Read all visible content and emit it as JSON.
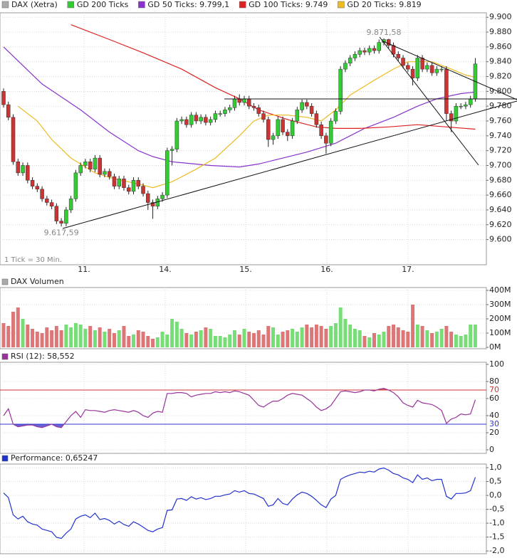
{
  "chart_data": [
    {
      "type": "candlestick",
      "name": "DAX (Xetra)",
      "name_color": "#aaaaaa",
      "footnote": "1 Tick = 30 Min.",
      "up_color": "#33cc33",
      "down_color": "#cc3333",
      "xlim": [
        -0.74,
        100.3
      ],
      "xticks": [
        {
          "value": 16.72,
          "label": "11."
        },
        {
          "value": 33.58,
          "label": "14."
        },
        {
          "value": 50.3,
          "label": "15."
        },
        {
          "value": 67.16,
          "label": "16."
        },
        {
          "value": 84.02,
          "label": "17."
        }
      ],
      "ylim": [
        9566,
        9906
      ],
      "yticks": [
        {
          "value": 9600,
          "label": "9.600"
        },
        {
          "value": 9620,
          "label": "9.620"
        },
        {
          "value": 9640,
          "label": "9.640"
        },
        {
          "value": 9660,
          "label": "9.660"
        },
        {
          "value": 9680,
          "label": "9.680"
        },
        {
          "value": 9700,
          "label": "9.700"
        },
        {
          "value": 9720,
          "label": "9.720"
        },
        {
          "value": 9740,
          "label": "9.740"
        },
        {
          "value": 9760,
          "label": "9.760"
        },
        {
          "value": 9780,
          "label": "9.780"
        },
        {
          "value": 9800,
          "label": "9.800"
        },
        {
          "value": 9820,
          "label": "9.820"
        },
        {
          "value": 9840,
          "label": "9.840"
        },
        {
          "value": 9860,
          "label": "9.860"
        },
        {
          "value": 9880,
          "label": "9.880"
        },
        {
          "value": 9900,
          "label": "9.900"
        }
      ],
      "grid": true,
      "open": [
        9800,
        9782,
        9765,
        9705,
        9690,
        9700,
        9680,
        9672,
        9668,
        9655,
        9650,
        9645,
        9625,
        9622,
        9640,
        9655,
        9690,
        9700,
        9705,
        9695,
        9710,
        9688,
        9692,
        9685,
        9672,
        9682,
        9670,
        9665,
        9680,
        9672,
        9662,
        9650,
        9645,
        9655,
        9660,
        9720,
        9722,
        9760,
        9762,
        9755,
        9768,
        9760,
        9765,
        9758,
        9762,
        9770,
        9770,
        9775,
        9778,
        9790,
        9785,
        9790,
        9780,
        9778,
        9770,
        9762,
        9735,
        9740,
        9762,
        9745,
        9740,
        9760,
        9775,
        9785,
        9780,
        9770,
        9755,
        9740,
        9730,
        9760,
        9773,
        9830,
        9838,
        9845,
        9850,
        9855,
        9853,
        9858,
        9855,
        9866,
        9870,
        9862,
        9850,
        9845,
        9835,
        9830,
        9818,
        9845,
        9830,
        9835,
        9825,
        9830,
        9830,
        9770,
        9760,
        9780,
        9780,
        9782,
        9790
      ],
      "high": [
        9804,
        9786,
        9769,
        9709,
        9704,
        9704,
        9684,
        9676,
        9672,
        9659,
        9654,
        9649,
        9629,
        9644,
        9659,
        9694,
        9704,
        9709,
        9709,
        9714,
        9714,
        9696,
        9696,
        9689,
        9686,
        9686,
        9674,
        9684,
        9684,
        9676,
        9666,
        9654,
        9659,
        9664,
        9724,
        9726,
        9764,
        9766,
        9766,
        9772,
        9772,
        9769,
        9769,
        9766,
        9774,
        9774,
        9779,
        9782,
        9794,
        9796,
        9794,
        9794,
        9784,
        9782,
        9774,
        9766,
        9744,
        9766,
        9766,
        9749,
        9764,
        9779,
        9789,
        9789,
        9784,
        9774,
        9759,
        9744,
        9764,
        9777,
        9834,
        9842,
        9849,
        9854,
        9859,
        9859,
        9862,
        9862,
        9870,
        9871.58,
        9871,
        9866,
        9854,
        9849,
        9839,
        9834,
        9849,
        9849,
        9839,
        9839,
        9834,
        9834,
        9834,
        9774,
        9784,
        9784,
        9786,
        9794,
        9845
      ],
      "low": [
        9778,
        9761,
        9701,
        9686,
        9686,
        9676,
        9668,
        9664,
        9651,
        9646,
        9641,
        9621,
        9617.59,
        9618,
        9636,
        9651,
        9686,
        9696,
        9691,
        9691,
        9684,
        9684,
        9681,
        9668,
        9668,
        9666,
        9661,
        9661,
        9668,
        9658,
        9640,
        9628,
        9641,
        9651,
        9656,
        9700,
        9718,
        9756,
        9751,
        9751,
        9756,
        9756,
        9754,
        9754,
        9758,
        9766,
        9766,
        9771,
        9774,
        9781,
        9781,
        9776,
        9774,
        9766,
        9758,
        9725,
        9728,
        9736,
        9741,
        9733,
        9736,
        9756,
        9771,
        9776,
        9766,
        9751,
        9736,
        9716,
        9726,
        9756,
        9769,
        9826,
        9834,
        9841,
        9846,
        9849,
        9849,
        9851,
        9851,
        9862,
        9858,
        9846,
        9841,
        9831,
        9826,
        9808,
        9814,
        9826,
        9826,
        9821,
        9821,
        9826,
        9760,
        9745,
        9756,
        9776,
        9776,
        9778,
        9786
      ],
      "close": [
        9782,
        9765,
        9705,
        9690,
        9700,
        9680,
        9672,
        9668,
        9655,
        9650,
        9645,
        9625,
        9622,
        9640,
        9655,
        9690,
        9700,
        9705,
        9695,
        9710,
        9688,
        9692,
        9685,
        9672,
        9682,
        9670,
        9665,
        9680,
        9672,
        9662,
        9650,
        9645,
        9655,
        9660,
        9720,
        9722,
        9760,
        9762,
        9755,
        9768,
        9760,
        9765,
        9758,
        9762,
        9770,
        9770,
        9775,
        9778,
        9790,
        9785,
        9790,
        9780,
        9778,
        9770,
        9762,
        9735,
        9740,
        9762,
        9745,
        9740,
        9760,
        9775,
        9785,
        9780,
        9770,
        9755,
        9740,
        9730,
        9760,
        9773,
        9830,
        9838,
        9845,
        9850,
        9855,
        9853,
        9858,
        9855,
        9866,
        9870,
        9862,
        9850,
        9845,
        9835,
        9830,
        9818,
        9845,
        9830,
        9835,
        9825,
        9830,
        9830,
        9770,
        9760,
        9780,
        9780,
        9782,
        9790,
        9837
      ],
      "series": [
        {
          "name": "GD 200 Ticks",
          "color": "#33cc33"
        },
        {
          "name": "GD 50 Ticks: 9.799,1",
          "color": "#8833cc",
          "x": [
            0,
            8,
            16,
            22,
            28,
            31,
            35,
            43,
            49,
            53,
            58,
            63,
            69,
            75,
            81,
            86,
            90,
            95,
            98
          ],
          "values": [
            9860,
            9810,
            9775,
            9745,
            9720,
            9712,
            9705,
            9700,
            9698,
            9702,
            9710,
            9718,
            9730,
            9750,
            9765,
            9780,
            9790,
            9797,
            9799.1
          ]
        },
        {
          "name": "GD 100 Ticks: 9.749",
          "color": "#dd2222",
          "x": [
            14,
            22,
            29,
            37,
            44,
            49,
            53,
            59,
            65,
            69,
            74,
            80,
            86,
            92,
            98
          ],
          "values": [
            9890,
            9870,
            9852,
            9830,
            9805,
            9790,
            9775,
            9762,
            9752,
            9750,
            9750,
            9752,
            9755,
            9752,
            9749
          ]
        },
        {
          "name": "GD 20 Ticks: 9.819",
          "color": "#eebb22",
          "x": [
            3,
            7,
            10,
            14,
            19,
            23,
            28,
            31,
            35,
            40,
            44,
            49,
            52,
            55,
            59,
            63,
            66,
            69,
            72,
            77,
            81,
            84,
            89,
            93,
            96,
            98
          ],
          "values": [
            9780,
            9760,
            9735,
            9710,
            9690,
            9682,
            9675,
            9670,
            9678,
            9695,
            9710,
            9740,
            9760,
            9768,
            9768,
            9765,
            9760,
            9775,
            9795,
            9815,
            9830,
            9840,
            9840,
            9830,
            9822,
            9819
          ]
        }
      ],
      "annotations": [
        {
          "label": "9.871,58",
          "value": 9871.58
        },
        {
          "label": "9.617,59",
          "value": 9617.59
        }
      ]
    },
    {
      "type": "bar",
      "title": "DAX Volumen",
      "title_color": "#aaaaaa",
      "ylim": [
        -10,
        420
      ],
      "yticks": [
        {
          "value": 0,
          "label": "0M"
        },
        {
          "value": 100,
          "label": "100M"
        },
        {
          "value": 200,
          "label": "200M"
        },
        {
          "value": 300,
          "label": "300M"
        },
        {
          "value": 400,
          "label": "400M"
        }
      ],
      "values": [
        170,
        150,
        250,
        280,
        200,
        160,
        130,
        110,
        100,
        140,
        120,
        150,
        120,
        160,
        140,
        170,
        160,
        130,
        150,
        120,
        140,
        110,
        130,
        100,
        120,
        150,
        80,
        90,
        120,
        110,
        80,
        60,
        70,
        110,
        90,
        200,
        180,
        130,
        100,
        90,
        110,
        120,
        140,
        130,
        80,
        80,
        70,
        90,
        120,
        90,
        130,
        110,
        100,
        120,
        90,
        150,
        140,
        90,
        110,
        120,
        130,
        110,
        140,
        160,
        140,
        160,
        150,
        130,
        150,
        170,
        280,
        200,
        160,
        130,
        120,
        80,
        70,
        100,
        90,
        110,
        150,
        160,
        140,
        120,
        110,
        300,
        160,
        150,
        120,
        100,
        110,
        130,
        150,
        110,
        90,
        80,
        90,
        160,
        160
      ]
    },
    {
      "type": "line",
      "title": "RSI (12): 58,552",
      "title_color": "#993399",
      "color": "#993399",
      "ylim": [
        -4.2,
        102.5
      ],
      "yticks": [
        0,
        20,
        40,
        60,
        80,
        100
      ],
      "levels": [
        {
          "value": 30,
          "color": "#3333cc"
        },
        {
          "value": 70,
          "color": "#cc3333"
        }
      ],
      "values": [
        40,
        48,
        30,
        27,
        28,
        29,
        29,
        27,
        26,
        28,
        30,
        27,
        26,
        33,
        40,
        45,
        38,
        47,
        46,
        46,
        45,
        44,
        46,
        47,
        46,
        45,
        44,
        46,
        44,
        40,
        38,
        43,
        45,
        44,
        66,
        66,
        67,
        67,
        66,
        62,
        64,
        65,
        66,
        66,
        68,
        67,
        68,
        67,
        69,
        68,
        66,
        64,
        58,
        52,
        50,
        54,
        57,
        57,
        60,
        64,
        66,
        65,
        64,
        60,
        56,
        50,
        46,
        48,
        52,
        60,
        68,
        69,
        68,
        67,
        68,
        70,
        70,
        69,
        71,
        72,
        70,
        67,
        62,
        55,
        52,
        50,
        58,
        55,
        54,
        53,
        50,
        46,
        31,
        36,
        38,
        42,
        41,
        42,
        58.55
      ]
    },
    {
      "type": "line",
      "title": "Performance: 0,65247",
      "title_color": "#2233cc",
      "color": "#2233cc",
      "ylim": [
        -2.1,
        1.13
      ],
      "yticks": [
        {
          "value": -2,
          "label": "-2,0"
        },
        {
          "value": -1.5,
          "label": "-1,5"
        },
        {
          "value": -1,
          "label": "-1,0"
        },
        {
          "value": -0.5,
          "label": "-0,5"
        },
        {
          "value": 0,
          "label": "0,0"
        },
        {
          "value": 0.5,
          "label": "0,5"
        },
        {
          "value": 1,
          "label": "1,0"
        }
      ],
      "values": [
        0.09,
        -0.08,
        -0.7,
        -0.85,
        -0.75,
        -0.95,
        -1.03,
        -1.07,
        -1.21,
        -1.26,
        -1.31,
        -1.51,
        -1.55,
        -1.36,
        -1.21,
        -0.85,
        -0.75,
        -0.7,
        -0.8,
        -0.64,
        -0.87,
        -0.83,
        -0.9,
        -1.03,
        -0.93,
        -1.05,
        -1.11,
        -0.95,
        -1.03,
        -1.14,
        -1.26,
        -1.31,
        -1.21,
        -1.16,
        -0.54,
        -0.52,
        -0.13,
        -0.11,
        -0.18,
        -0.05,
        -0.13,
        -0.08,
        -0.15,
        -0.11,
        -0.03,
        -0.03,
        0.02,
        0.05,
        0.17,
        0.12,
        0.17,
        0.07,
        0.05,
        -0.03,
        -0.11,
        -0.39,
        -0.34,
        -0.11,
        -0.29,
        -0.34,
        -0.13,
        0.02,
        0.12,
        0.07,
        -0.03,
        -0.18,
        -0.34,
        -0.44,
        -0.13,
        0,
        0.58,
        0.67,
        0.74,
        0.79,
        0.84,
        0.82,
        0.87,
        0.84,
        0.95,
        0.99,
        0.91,
        0.79,
        0.74,
        0.63,
        0.58,
        0.46,
        0.74,
        0.58,
        0.63,
        0.53,
        0.58,
        0.58,
        -0.03,
        -0.13,
        0.07,
        0.07,
        0.09,
        0.17,
        0.65247
      ]
    }
  ]
}
